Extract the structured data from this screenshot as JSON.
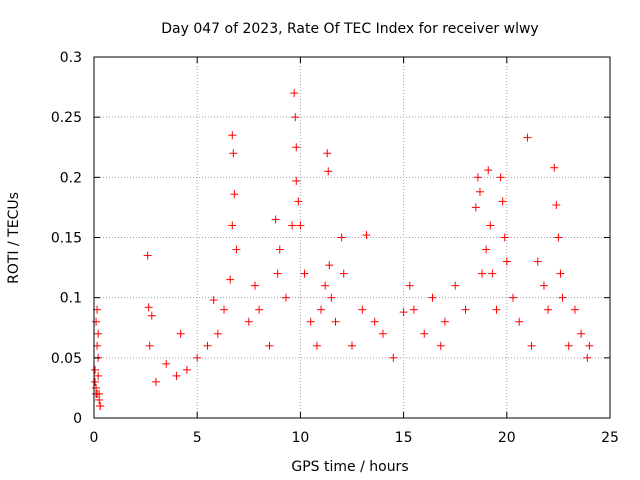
{
  "chart_data": {
    "type": "scatter",
    "title": "Day 047 of 2023, Rate Of TEC Index for receiver wlwy",
    "xlabel": "GPS time / hours",
    "ylabel": "ROTI / TECUs",
    "xlim": [
      0,
      25
    ],
    "ylim": [
      0,
      0.3
    ],
    "x_ticks": [
      0,
      5,
      10,
      15,
      20,
      25
    ],
    "y_ticks": [
      0,
      0.05,
      0.1,
      0.15,
      0.2,
      0.25,
      0.3
    ],
    "x_tick_labels": [
      "0",
      "5",
      "10",
      "15",
      "20",
      "25"
    ],
    "y_tick_labels": [
      "0",
      "0.05",
      "0.1",
      "0.15",
      "0.2",
      "0.25",
      "0.3"
    ],
    "grid": true,
    "marker": "+",
    "series": [
      {
        "name": "ROTI",
        "color": "#ff0000",
        "x": [
          0.05,
          0.1,
          0.15,
          0.2,
          0.25,
          0.3,
          0.1,
          0.2,
          0.15,
          0.05,
          0.25,
          0.1,
          0.2,
          0.3,
          0.15,
          2.6,
          2.65,
          2.7,
          2.8,
          3.0,
          3.5,
          4.0,
          4.2,
          4.5,
          5.0,
          5.5,
          5.8,
          6.0,
          6.3,
          6.6,
          6.7,
          6.75,
          6.7,
          6.8,
          6.9,
          7.5,
          7.8,
          8.0,
          8.5,
          8.8,
          8.9,
          9.0,
          9.3,
          9.6,
          9.7,
          9.75,
          9.8,
          9.8,
          9.9,
          10.0,
          10.2,
          10.5,
          10.8,
          11.0,
          11.2,
          11.3,
          11.35,
          11.4,
          11.5,
          11.7,
          12.0,
          12.1,
          12.5,
          13.0,
          13.2,
          13.6,
          14.0,
          14.5,
          15.0,
          15.3,
          15.5,
          16.0,
          16.4,
          16.8,
          17.0,
          17.5,
          18.0,
          18.5,
          18.6,
          18.7,
          18.8,
          19.0,
          19.1,
          19.2,
          19.3,
          19.5,
          19.7,
          19.8,
          19.9,
          20.0,
          20.3,
          20.6,
          21.0,
          21.2,
          21.5,
          21.8,
          22.0,
          22.3,
          22.4,
          22.5,
          22.6,
          22.7,
          23.0,
          23.3,
          23.6,
          23.9,
          24.0
        ],
        "y": [
          0.03,
          0.08,
          0.09,
          0.07,
          0.02,
          0.01,
          0.02,
          0.05,
          0.06,
          0.04,
          0.015,
          0.025,
          0.035,
          0.01,
          0.02,
          0.135,
          0.092,
          0.06,
          0.085,
          0.03,
          0.045,
          0.035,
          0.07,
          0.04,
          0.05,
          0.06,
          0.098,
          0.07,
          0.09,
          0.115,
          0.235,
          0.22,
          0.16,
          0.186,
          0.14,
          0.08,
          0.11,
          0.09,
          0.06,
          0.165,
          0.12,
          0.14,
          0.1,
          0.16,
          0.27,
          0.25,
          0.225,
          0.197,
          0.18,
          0.16,
          0.12,
          0.08,
          0.06,
          0.09,
          0.11,
          0.22,
          0.205,
          0.127,
          0.1,
          0.08,
          0.15,
          0.12,
          0.06,
          0.09,
          0.152,
          0.08,
          0.07,
          0.05,
          0.088,
          0.11,
          0.09,
          0.07,
          0.1,
          0.06,
          0.08,
          0.11,
          0.09,
          0.175,
          0.2,
          0.188,
          0.12,
          0.14,
          0.206,
          0.16,
          0.12,
          0.09,
          0.2,
          0.18,
          0.15,
          0.13,
          0.1,
          0.08,
          0.233,
          0.06,
          0.13,
          0.11,
          0.09,
          0.208,
          0.177,
          0.15,
          0.12,
          0.1,
          0.06,
          0.09,
          0.07,
          0.05,
          0.06
        ]
      }
    ]
  }
}
